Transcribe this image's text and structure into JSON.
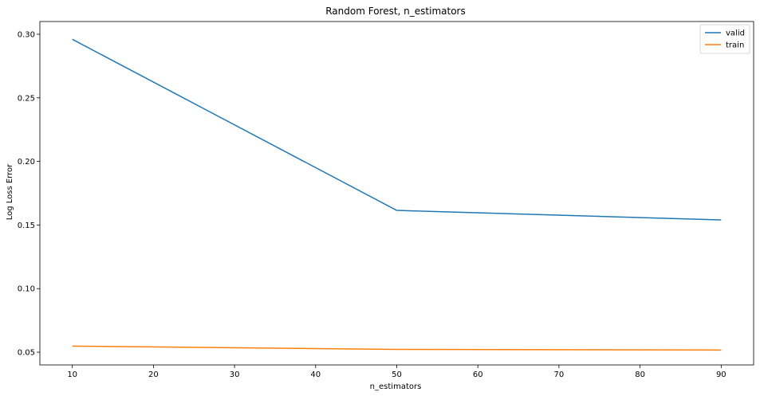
{
  "chart_data": {
    "type": "line",
    "title": "Random Forest, n_estimators",
    "xlabel": "n_estimators",
    "ylabel": "Log Loss Error",
    "xlim": [
      6,
      94
    ],
    "ylim": [
      0.04,
      0.31
    ],
    "xticks": [
      10,
      20,
      30,
      40,
      50,
      60,
      70,
      80,
      90
    ],
    "xtick_labels": [
      "10",
      "20",
      "30",
      "40",
      "50",
      "60",
      "70",
      "80",
      "90"
    ],
    "yticks": [
      0.05,
      0.1,
      0.15,
      0.2,
      0.25,
      0.3
    ],
    "ytick_labels": [
      "0.05",
      "0.10",
      "0.15",
      "0.20",
      "0.25",
      "0.30"
    ],
    "grid": false,
    "legend_position": "top-right",
    "series": [
      {
        "name": "valid",
        "color": "#1f77b4",
        "x": [
          10,
          50,
          90
        ],
        "y": [
          0.296,
          0.1615,
          0.154
        ]
      },
      {
        "name": "train",
        "color": "#ff7f0e",
        "x": [
          10,
          50,
          90
        ],
        "y": [
          0.0548,
          0.0522,
          0.0517
        ]
      }
    ]
  }
}
